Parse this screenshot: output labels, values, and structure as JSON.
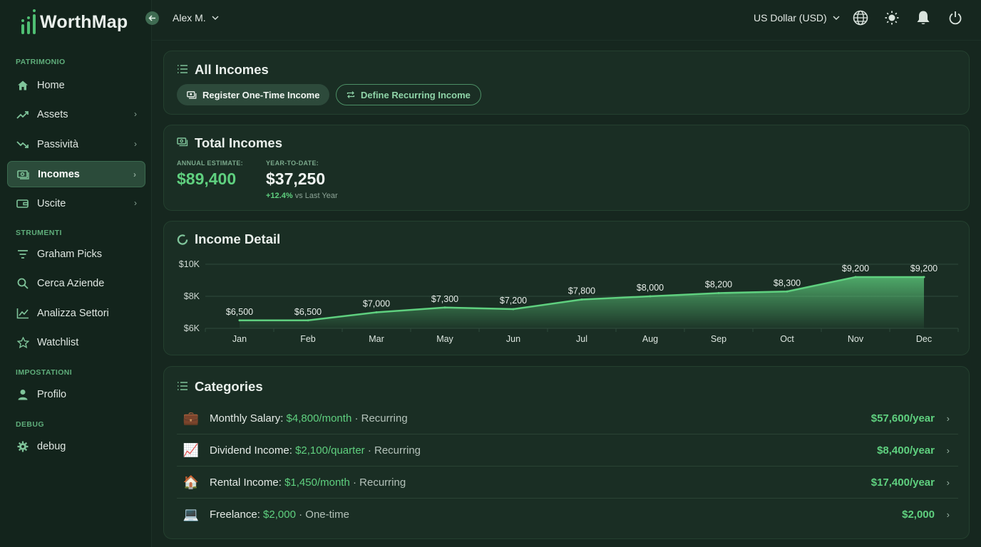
{
  "app": {
    "name": "WorthMap",
    "user": "Alex M.",
    "currency": "US Dollar (USD)"
  },
  "sidebar": {
    "sections": [
      {
        "title": "PATRIMONIO",
        "items": [
          {
            "label": "Home",
            "icon": "home-icon"
          },
          {
            "label": "Assets",
            "icon": "trending-up-icon"
          },
          {
            "label": "Passività",
            "icon": "trending-down-icon"
          },
          {
            "label": "Incomes",
            "icon": "cash-icon",
            "active": true
          },
          {
            "label": "Uscite",
            "icon": "wallet-icon"
          }
        ]
      },
      {
        "title": "STRUMENTI",
        "items": [
          {
            "label": "Graham Picks",
            "icon": "filter-icon"
          },
          {
            "label": "Cerca Aziende",
            "icon": "search-icon"
          },
          {
            "label": "Analizza Settori",
            "icon": "chart-icon"
          },
          {
            "label": "Watchlist",
            "icon": "star-icon"
          }
        ]
      },
      {
        "title": "IMPOSTATIONI",
        "items": [
          {
            "label": "Profilo",
            "icon": "user-icon"
          }
        ]
      },
      {
        "title": "DEBUG",
        "items": [
          {
            "label": "debug",
            "icon": "gear-icon"
          }
        ]
      }
    ]
  },
  "all_incomes": {
    "title": "All Incomes",
    "register_label": "Register One-Time Income",
    "define_label": "Define Recurring Income"
  },
  "totals": {
    "title": "Total Incomes",
    "annual_label": "ANNUAL ESTIMATE:",
    "annual_value": "$89,400",
    "ytd_label": "YEAR-TO-DATE:",
    "ytd_value": "$37,250",
    "change_pct": "+12.4%",
    "change_text": "vs Last Year"
  },
  "income_detail": {
    "title": "Income Detail"
  },
  "chart_data": {
    "type": "area",
    "categories": [
      "Jan",
      "Feb",
      "Mar",
      "May",
      "Jun",
      "Jul",
      "Aug",
      "Sep",
      "Oct",
      "Nov",
      "Dec"
    ],
    "values": [
      6500,
      6500,
      7000,
      7300,
      7200,
      7800,
      8000,
      8200,
      8300,
      9200,
      9200
    ],
    "data_labels": [
      "$6,500",
      "$6,500",
      "$7,000",
      "$7,300",
      "$7,200",
      "$7,800",
      "$8,000",
      "$8,200",
      "$8,300",
      "$9,200",
      "$9,200"
    ],
    "y_ticks": [
      6000,
      8000,
      10000
    ],
    "y_tick_labels": [
      "$6K",
      "$8K",
      "$10K"
    ],
    "ylim": [
      6000,
      10000
    ],
    "grid": true,
    "color": "#5fd07f"
  },
  "categories": {
    "title": "Categories",
    "items": [
      {
        "emoji": "💼",
        "name": "Monthly Salary:",
        "amount": "$4,800/month",
        "kind": "· Recurring",
        "total": "$57,600/year"
      },
      {
        "emoji": "📈",
        "name": "Dividend Income:",
        "amount": "$2,100/quarter",
        "kind": "· Recurring",
        "total": "$8,400/year"
      },
      {
        "emoji": "🏠",
        "name": "Rental Income:",
        "amount": "$1,450/month",
        "kind": "· Recurring",
        "total": "$17,400/year"
      },
      {
        "emoji": "💻",
        "name": "Freelance:",
        "amount": "$2,000",
        "kind": "· One-time",
        "total": "$2,000"
      }
    ]
  }
}
